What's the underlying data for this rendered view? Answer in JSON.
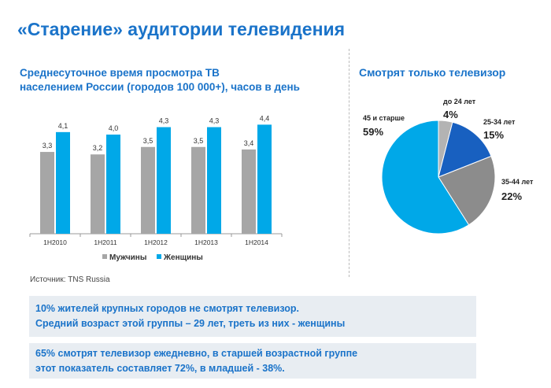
{
  "page_title": "«Старение» аудитории телевидения",
  "source": "Источник: TNS Russia",
  "notes": [
    {
      "line1": "10% жителей крупных городов не смотрят телевизор.",
      "line2": "Средний возраст этой группы – 29 лет, треть из них - женщины"
    },
    {
      "line1": "65% смотрят телевизор ежедневно, в старшей возрастной группе",
      "line2": "этот показатель составляет 72%, в младшей - 38%."
    }
  ],
  "chart_data": [
    {
      "type": "bar",
      "title_line1": "Среднесуточное время просмотра ТВ",
      "title_line2": "населением России (городов 100 000+), часов в день",
      "categories": [
        "1H2010",
        "1H2011",
        "1H2012",
        "1H2013",
        "1H2014"
      ],
      "series": [
        {
          "name": "Мужчины",
          "values": [
            3.3,
            3.2,
            3.5,
            3.5,
            3.4
          ],
          "labels": [
            "3,3",
            "3,2",
            "3,5",
            "3,5",
            "3,4"
          ],
          "color": "#a6a6a6"
        },
        {
          "name": "Женщины",
          "values": [
            4.1,
            4.0,
            4.3,
            4.3,
            4.4
          ],
          "labels": [
            "4,1",
            "4,0",
            "4,3",
            "4,3",
            "4,4"
          ],
          "color": "#00a8e8"
        }
      ],
      "legend_position": "bottom",
      "grid": false
    },
    {
      "type": "pie",
      "title": "Смотрят только телевизор",
      "slices": [
        {
          "label": "до 24 лет",
          "value": 4,
          "value_label": "4%",
          "color": "#b3b3b3"
        },
        {
          "label": "25-34 лет",
          "value": 15,
          "value_label": "15%",
          "color": "#1860c0"
        },
        {
          "label": "35-44 лет",
          "value": 22,
          "value_label": "22%",
          "color": "#8c8c8c"
        },
        {
          "label": "45 и старше",
          "value": 59,
          "value_label": "59%",
          "color": "#00a8e8"
        }
      ]
    }
  ]
}
